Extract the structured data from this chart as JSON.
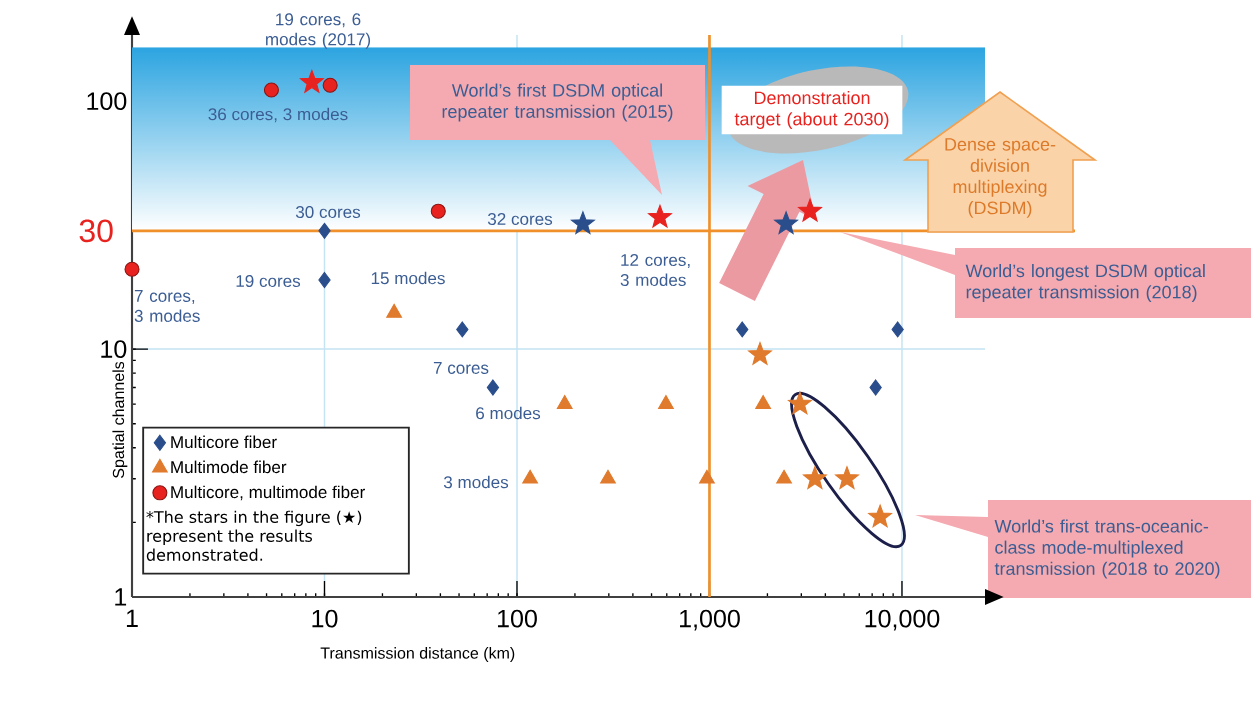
{
  "chart_data": {
    "type": "scatter",
    "xlabel": "Transmission distance (km)",
    "ylabel": "Spatial channels",
    "log": "xy",
    "xlim": [
      1,
      27000
    ],
    "ylim": [
      1,
      185
    ],
    "xticks": [
      1,
      10,
      100,
      {
        "value": 1000,
        "label": "1,000"
      },
      {
        "value": 10000,
        "label": "10,000"
      }
    ],
    "yticks": [
      1,
      10,
      100
    ],
    "grid": true,
    "legend": "bottom left",
    "series": [
      {
        "name": "Multicore fiber",
        "marker": "diamond",
        "color": "#2a4e8c",
        "x": [
          10,
          10,
          52,
          75,
          1480,
          9500,
          7300
        ],
        "values": [
          30,
          19,
          12,
          7,
          12,
          12,
          7
        ]
      },
      {
        "name": "Multimode fiber",
        "marker": "triangle",
        "color": "#e07a2c",
        "x": [
          23,
          177,
          594,
          1900,
          117,
          297,
          970,
          2440
        ],
        "values": [
          14,
          6,
          6,
          6,
          3,
          3,
          3,
          3
        ]
      },
      {
        "name": "Multicore, multimode fiber",
        "marker": "circle",
        "color": "#e8231f",
        "x": [
          1,
          5.3,
          10.7,
          39
        ],
        "values": [
          21,
          111,
          116,
          36
        ]
      },
      {
        "marker": "star",
        "color": "#2a4e8c",
        "x": [
          220,
          2500
        ],
        "values": [
          32,
          32
        ]
      },
      {
        "marker": "star",
        "color": "#e07a2c",
        "x": [
          1830,
          2950,
          3530,
          5180,
          7700
        ],
        "values": [
          9.5,
          6,
          3,
          3,
          2.1
        ]
      },
      {
        "marker": "star",
        "color": "#e8231f",
        "x": [
          8.6,
          553,
          3330
        ],
        "values": [
          119,
          34,
          36
        ]
      }
    ],
    "ref_lines": [
      {
        "axis": "x",
        "value": 1000,
        "color": "#f0902a"
      },
      {
        "axis": "y",
        "value": 30,
        "label": "30",
        "color": "#f0902a"
      }
    ],
    "bands": [
      {
        "axis": "y",
        "from": 30,
        "to": 165,
        "color": "#2ba4e0"
      }
    ],
    "annotations": [
      "19 cores, 6 modes (2017)",
      "36 cores, 3 modes",
      "30 cores",
      "19 cores",
      "7 cores, 3 modes",
      "15 modes",
      "32 cores",
      "12 cores, 3 modes",
      "7 cores",
      "6 modes",
      "3 modes",
      "World’s first DSDM optical repeater transmission (2015)",
      "Demonstration target (about 2030)",
      "Dense space-division multiplexing (DSDM)",
      "World’s longest DSDM optical repeater transmission (2018)",
      "World’s first trans-oceanic-class mode-multiplexed transmission (2018 to 2020)",
      "*The stars in the figure (★) represent the results demonstrated."
    ]
  }
}
